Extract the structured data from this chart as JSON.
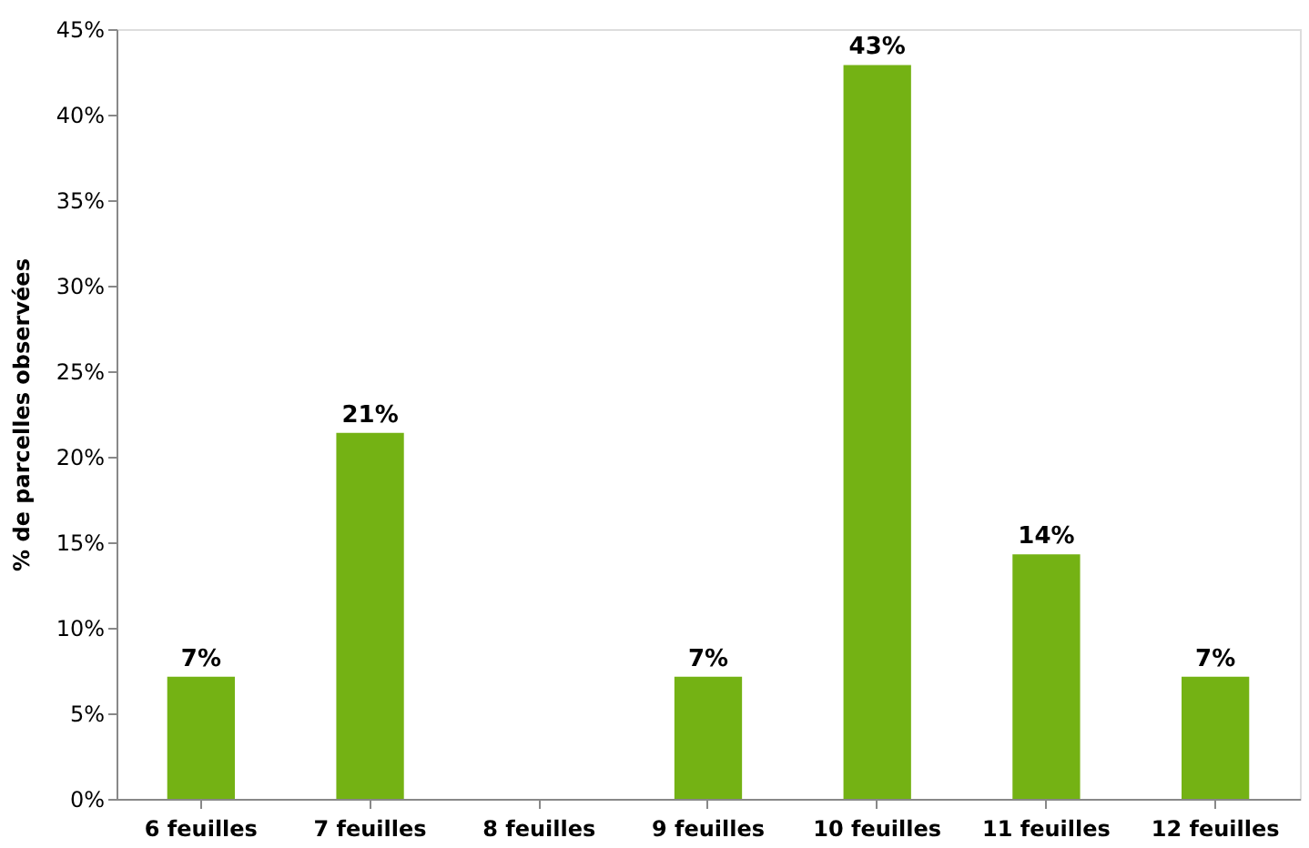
{
  "chart_data": {
    "type": "bar",
    "ylabel": "% de parcelles observées",
    "categories": [
      "6 feuilles",
      "7 feuilles",
      "8 feuilles",
      "9 feuilles",
      "10 feuilles",
      "11 feuilles",
      "12 feuilles"
    ],
    "values": [
      7.14,
      21.4,
      0,
      7.14,
      42.9,
      14.3,
      7.14
    ],
    "value_labels": [
      "7%",
      "21%",
      null,
      "7%",
      "43%",
      "14%",
      "7%"
    ],
    "color": "#74b214",
    "ylim": [
      0,
      45
    ],
    "yticks": [
      {
        "value": 0,
        "label": "0%"
      },
      {
        "value": 5,
        "label": "5%"
      },
      {
        "value": 10,
        "label": "10%"
      },
      {
        "value": 15,
        "label": "15%"
      },
      {
        "value": 20,
        "label": "20%"
      },
      {
        "value": 25,
        "label": "25%"
      },
      {
        "value": 30,
        "label": "30%"
      },
      {
        "value": 35,
        "label": "35%"
      },
      {
        "value": 40,
        "label": "40%"
      },
      {
        "value": 45,
        "label": "45%"
      }
    ],
    "grid": false
  }
}
